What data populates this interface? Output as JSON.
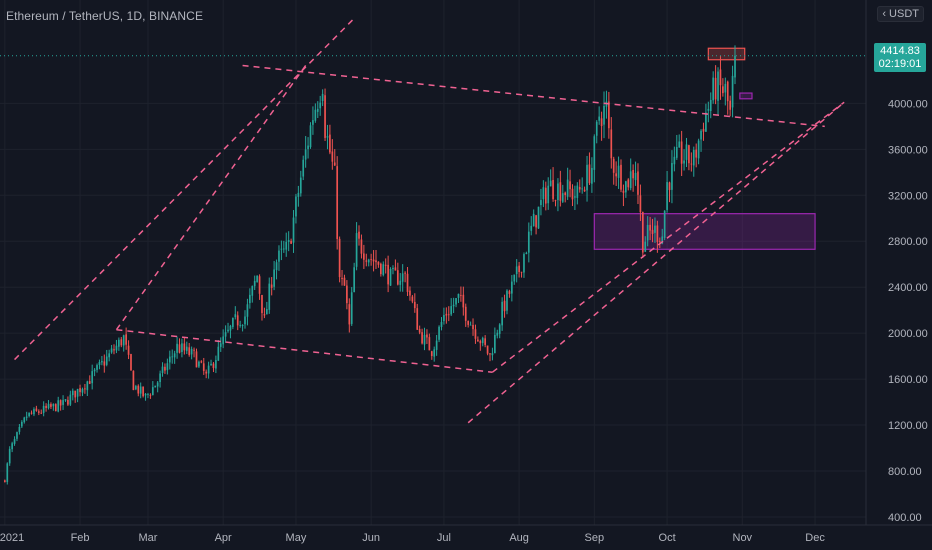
{
  "header": {
    "title": "Ethereum / TetherUS, 1D, BINANCE",
    "currency": "USDT"
  },
  "price_label": {
    "price": "4414.83",
    "countdown": "02:19:01",
    "color": "#26a69a"
  },
  "colors": {
    "background": "#131722",
    "up": "#26a69a",
    "down": "#ef5350",
    "trendline": "#f06292",
    "zone": "#9c27b0",
    "last_price_line": "#26a69a"
  },
  "chart_data": {
    "type": "candlestick",
    "title": "Ethereum / TetherUS, 1D, BINANCE",
    "y_unit": "USDT",
    "ylim": [
      330,
      4900
    ],
    "y_ticks": [
      "400.00",
      "800.00",
      "1200.00",
      "1600.00",
      "2000.00",
      "2400.00",
      "2800.00",
      "3200.00",
      "3600.00",
      "4000.00"
    ],
    "x_ticks": [
      "2021",
      "Feb",
      "Mar",
      "Apr",
      "May",
      "Jun",
      "Jul",
      "Aug",
      "Sep",
      "Oct",
      "Nov",
      "Dec"
    ],
    "x_range": [
      "2020-12-30",
      "2021-12-22"
    ],
    "close_path": [
      [
        "2021-01-01",
        730
      ],
      [
        "2021-01-03",
        975
      ],
      [
        "2021-01-10",
        1280
      ],
      [
        "2021-01-20",
        1350
      ],
      [
        "2021-01-25",
        1380
      ],
      [
        "2021-02-05",
        1600
      ],
      [
        "2021-02-12",
        1780
      ],
      [
        "2021-02-19",
        1960
      ],
      [
        "2021-02-23",
        1550
      ],
      [
        "2021-02-28",
        1440
      ],
      [
        "2021-03-05",
        1580
      ],
      [
        "2021-03-13",
        1880
      ],
      [
        "2021-03-20",
        1800
      ],
      [
        "2021-03-25",
        1620
      ],
      [
        "2021-04-01",
        1930
      ],
      [
        "2021-04-06",
        2100
      ],
      [
        "2021-04-10",
        2150
      ],
      [
        "2021-04-15",
        2500
      ],
      [
        "2021-04-18",
        2100
      ],
      [
        "2021-04-22",
        2600
      ],
      [
        "2021-04-28",
        2750
      ],
      [
        "2021-05-03",
        3350
      ],
      [
        "2021-05-08",
        3900
      ],
      [
        "2021-05-12",
        4200
      ],
      [
        "2021-05-13",
        3800
      ],
      [
        "2021-05-17",
        3350
      ],
      [
        "2021-05-19",
        2450
      ],
      [
        "2021-05-21",
        2400
      ],
      [
        "2021-05-23",
        2050
      ],
      [
        "2021-05-26",
        2800
      ],
      [
        "2021-06-01",
        2650
      ],
      [
        "2021-06-05",
        2600
      ],
      [
        "2021-06-09",
        2480
      ],
      [
        "2021-06-15",
        2500
      ],
      [
        "2021-06-21",
        2000
      ],
      [
        "2021-06-26",
        1850
      ],
      [
        "2021-07-01",
        2150
      ],
      [
        "2021-07-07",
        2300
      ],
      [
        "2021-07-13",
        2050
      ],
      [
        "2021-07-20",
        1800
      ],
      [
        "2021-07-25",
        2200
      ],
      [
        "2021-08-01",
        2550
      ],
      [
        "2021-08-06",
        2900
      ],
      [
        "2021-08-13",
        3280
      ],
      [
        "2021-08-20",
        3250
      ],
      [
        "2021-08-25",
        3200
      ],
      [
        "2021-08-31",
        3450
      ],
      [
        "2021-09-03",
        3900
      ],
      [
        "2021-09-06",
        3950
      ],
      [
        "2021-09-08",
        3500
      ],
      [
        "2021-09-14",
        3300
      ],
      [
        "2021-09-18",
        3450
      ],
      [
        "2021-09-21",
        2800
      ],
      [
        "2021-09-25",
        2900
      ],
      [
        "2021-09-29",
        2850
      ],
      [
        "2021-10-01",
        3300
      ],
      [
        "2021-10-06",
        3550
      ],
      [
        "2021-10-12",
        3500
      ],
      [
        "2021-10-16",
        3850
      ],
      [
        "2021-10-21",
        4150
      ],
      [
        "2021-10-25",
        4100
      ],
      [
        "2021-10-27",
        3900
      ],
      [
        "2021-10-29",
        4400
      ]
    ],
    "trendlines": [
      {
        "style": "dashed",
        "from": [
          "2021-01-05",
          1770
        ],
        "to": [
          "2021-05-25",
          4740
        ]
      },
      {
        "style": "dashed",
        "from": [
          "2021-02-16",
          2030
        ],
        "to": [
          "2021-07-21",
          1660
        ]
      },
      {
        "style": "dashed",
        "from": [
          "2021-07-21",
          1660
        ],
        "to": [
          "2021-12-13",
          4010
        ]
      },
      {
        "style": "dashed",
        "from": [
          "2021-04-09",
          4330
        ],
        "to": [
          "2021-12-05",
          3800
        ]
      },
      {
        "style": "dashed",
        "from": [
          "2021-02-16",
          2030
        ],
        "to": [
          "2021-05-05",
          4330
        ]
      },
      {
        "style": "dashed",
        "from": [
          "2021-07-11",
          1220
        ],
        "to": [
          "2021-12-13",
          4010
        ]
      }
    ],
    "zones": [
      {
        "from": [
          "2021-09-01",
          3040
        ],
        "to": [
          "2021-12-01",
          2730
        ],
        "color": "#9c27b0"
      },
      {
        "from": [
          "2021-10-18",
          4480
        ],
        "to": [
          "2021-11-02",
          4380
        ],
        "color": "#ef5350"
      },
      {
        "from": [
          "2021-10-31",
          4090
        ],
        "to": [
          "2021-11-05",
          4040
        ],
        "color": "#9c27b0"
      }
    ],
    "last_price": 4414.83
  }
}
